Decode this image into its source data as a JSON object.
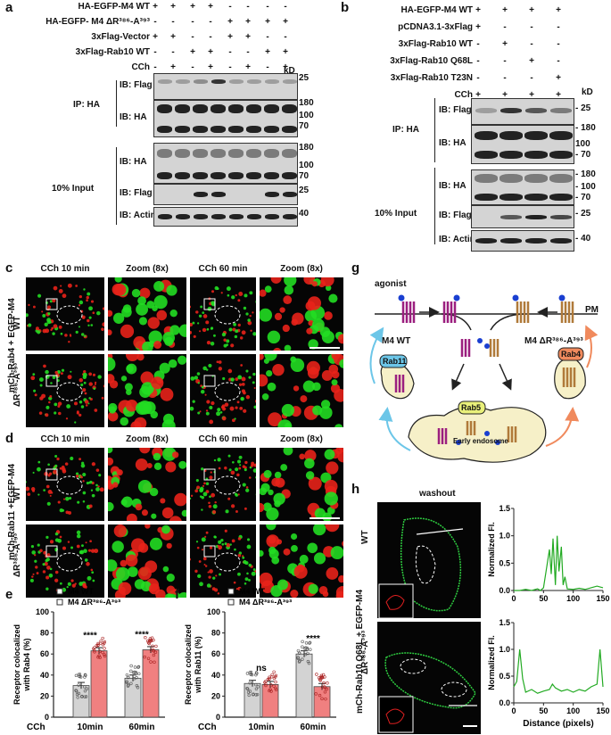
{
  "panel_letters": {
    "a": "a",
    "b": "b",
    "c": "c",
    "d": "d",
    "e": "e",
    "f": "f",
    "g": "g",
    "h": "h"
  },
  "panel_a": {
    "rows": [
      {
        "label": "HA-EGFP-M4 WT",
        "signs": [
          "+",
          "+",
          "+",
          "+",
          "-",
          "-",
          "-",
          "-"
        ]
      },
      {
        "label": "HA-EGFP- M4 ΔR³⁸⁶-A³⁹³",
        "signs": [
          "-",
          "-",
          "-",
          "-",
          "+",
          "+",
          "+",
          "+"
        ]
      },
      {
        "label": "3xFlag-Vector",
        "signs": [
          "+",
          "+",
          "-",
          "-",
          "+",
          "+",
          "-",
          "-"
        ]
      },
      {
        "label": "3xFlag-Rab10 WT",
        "signs": [
          "-",
          "-",
          "+",
          "+",
          "-",
          "-",
          "+",
          "+"
        ]
      },
      {
        "label": "CCh",
        "signs": [
          "-",
          "+",
          "-",
          "+",
          "-",
          "+",
          "-",
          "+"
        ]
      }
    ],
    "kd": "kD",
    "ip_label": "IP: HA",
    "input_label": "10% Input",
    "blots": [
      {
        "label": "IB: Flag",
        "markers": [
          "25"
        ]
      },
      {
        "label": "IB: HA",
        "markers": [
          "180",
          "100",
          "70"
        ]
      },
      {
        "label": "IB: HA",
        "markers": [
          "180",
          "100",
          "70"
        ]
      },
      {
        "label": "IB: Flag",
        "markers": [
          "25"
        ]
      },
      {
        "label": "IB: Actin",
        "markers": [
          "40"
        ]
      }
    ]
  },
  "panel_b": {
    "rows": [
      {
        "label": "HA-EGFP-M4 WT",
        "signs": [
          "+",
          "+",
          "+",
          "+"
        ]
      },
      {
        "label": "pCDNA3.1-3xFlag",
        "signs": [
          "+",
          "-",
          "-",
          "-"
        ]
      },
      {
        "label": "3xFlag-Rab10 WT",
        "signs": [
          "-",
          "+",
          "-",
          "-"
        ]
      },
      {
        "label": "3xFlag-Rab10 Q68L",
        "signs": [
          "-",
          "-",
          "+",
          "-"
        ]
      },
      {
        "label": "3xFlag-Rab10 T23N",
        "signs": [
          "-",
          "-",
          "-",
          "+"
        ]
      },
      {
        "label": "CCh",
        "signs": [
          "+",
          "+",
          "+",
          "+"
        ]
      }
    ],
    "kd": "kD",
    "ip_label": "IP: HA",
    "input_label": "10% Input",
    "blots": [
      {
        "label": "IB: Flag",
        "markers": [
          "- 25"
        ]
      },
      {
        "label": "IB: HA",
        "markers": [
          "- 180",
          "100",
          "- 70"
        ]
      },
      {
        "label": "IB: HA",
        "markers": [
          "- 180",
          "- 100",
          "- 70"
        ]
      },
      {
        "label": "IB: Flag",
        "markers": [
          "- 25"
        ]
      },
      {
        "label": "IB: Actin",
        "markers": [
          "- 40"
        ]
      }
    ]
  },
  "panel_c": {
    "side_label": "mCh-Rab4 + EGFP-M4",
    "columns": [
      "CCh 10 min",
      "Zoom (8x)",
      "CCh 60 min",
      "Zoom (8x)"
    ],
    "rows": [
      "WT",
      "ΔR³⁸⁶-A³⁹³"
    ]
  },
  "panel_d": {
    "side_label": "mCh-Rab11 +EGFP-M4",
    "columns": [
      "CCh 10 min",
      "Zoom (8x)",
      "CCh 60 min",
      "Zoom (8x)"
    ],
    "rows": [
      "WT",
      "ΔR³⁸⁶-A³⁹³"
    ]
  },
  "panel_e": {
    "legend": [
      "M4 WT",
      "M4 ΔR³⁸⁶-A³⁹³"
    ],
    "ylabel_line1": "Receptor colocalized",
    "ylabel_line2": "with Rab4 (%)",
    "yticks": [
      "0",
      "20",
      "40",
      "60",
      "80",
      "100"
    ],
    "xlabels": [
      "CCh",
      "10min",
      "60min"
    ],
    "sig": [
      "****",
      "****"
    ]
  },
  "panel_f": {
    "legend": [
      "M4 WT",
      "M4 ΔR³⁸⁶-A³⁹³"
    ],
    "ylabel_line1": "Receptor colocalized",
    "ylabel_line2": "with Rab11 (%)",
    "yticks": [
      "0",
      "20",
      "40",
      "60",
      "80",
      "100"
    ],
    "xlabels": [
      "CCh",
      "10min",
      "60min"
    ],
    "sig": [
      "ns",
      "****"
    ]
  },
  "panel_g": {
    "agonist": "agonist",
    "pm": "PM",
    "m4wt": "M4 WT",
    "m4del": "M4 ΔR³⁸⁶-A³⁹³",
    "rab11": "Rab11",
    "rab4": "Rab4",
    "rab5": "Rab5",
    "early_endosome": "Early endosome"
  },
  "panel_h": {
    "washout": "washout",
    "side_label": "mCh-Rab10 Q68L + EGFP-M4",
    "rows": [
      "WT",
      "ΔR³⁸⁶-A³⁹³"
    ],
    "ylabel": "Normalized Fl.",
    "xlabel": "Distance (pixels)",
    "yticks": [
      "0.0",
      "0.5",
      "1.0",
      "1.5"
    ],
    "xticks": [
      "0",
      "50",
      "100",
      "150"
    ]
  },
  "chart_data": [
    {
      "type": "bar",
      "categories": [
        "10min",
        "60min"
      ],
      "series": [
        {
          "name": "M4 WT",
          "values": [
            30,
            37
          ]
        },
        {
          "name": "M4 ΔR³⁸⁶-A³⁹³",
          "values": [
            63,
            64
          ]
        }
      ],
      "ylabel": "Receptor colocalized with Rab4 (%)",
      "ylim": [
        0,
        100
      ],
      "colors": [
        "#d3d3d3",
        "#f08080"
      ]
    },
    {
      "type": "bar",
      "categories": [
        "10min",
        "60min"
      ],
      "series": [
        {
          "name": "M4 WT",
          "values": [
            32,
            60
          ]
        },
        {
          "name": "M4 ΔR³⁸⁶-A³⁹³",
          "values": [
            31,
            29
          ]
        }
      ],
      "ylabel": "Receptor colocalized with Rab11 (%)",
      "ylim": [
        0,
        100
      ],
      "colors": [
        "#d3d3d3",
        "#f08080"
      ]
    },
    {
      "type": "line",
      "x": [
        0,
        10,
        20,
        30,
        40,
        45,
        50,
        55,
        60,
        63,
        66,
        70,
        73,
        76,
        80,
        83,
        86,
        90,
        100,
        110,
        120,
        130,
        140,
        150
      ],
      "y": [
        0.0,
        0.0,
        0.02,
        0.0,
        0.03,
        0.0,
        0.05,
        0.4,
        0.75,
        0.3,
        0.95,
        0.1,
        1.0,
        0.35,
        0.8,
        0.1,
        0.25,
        0.03,
        0.02,
        0.04,
        0.02,
        0.05,
        0.08,
        0.05
      ],
      "ylabel": "Normalized Fl.",
      "xlim": [
        0,
        150
      ],
      "ylim": [
        0,
        1.5
      ],
      "color": "#22aa22"
    },
    {
      "type": "line",
      "x": [
        0,
        5,
        10,
        15,
        20,
        30,
        40,
        50,
        60,
        65,
        70,
        80,
        90,
        100,
        110,
        120,
        130,
        140,
        145,
        150
      ],
      "y": [
        0.3,
        0.4,
        1.0,
        0.45,
        0.2,
        0.25,
        0.18,
        0.22,
        0.25,
        0.35,
        0.28,
        0.22,
        0.25,
        0.2,
        0.25,
        0.22,
        0.3,
        0.35,
        1.0,
        0.3
      ],
      "xlabel": "Distance (pixels)",
      "ylabel": "Normalized Fl.",
      "xlim": [
        0,
        150
      ],
      "ylim": [
        0,
        1.5
      ],
      "color": "#22aa22"
    }
  ]
}
